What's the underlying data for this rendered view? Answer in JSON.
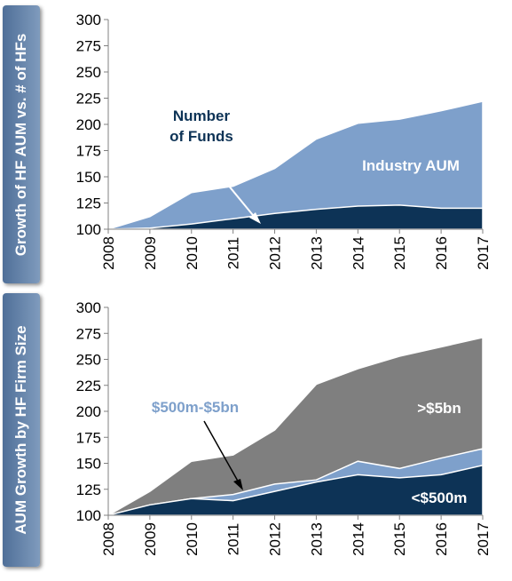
{
  "chart_data": [
    {
      "type": "area",
      "ylabel": "Growth of HF AUM vs. # of HFs",
      "x": [
        "2008",
        "2009",
        "2010",
        "2011",
        "2012",
        "2013",
        "2014",
        "2015",
        "2016",
        "2017"
      ],
      "ylim": [
        100,
        300
      ],
      "yticks": [
        "100",
        "125",
        "150",
        "175",
        "200",
        "225",
        "250",
        "275",
        "300"
      ],
      "series": [
        {
          "name": "Industry AUM",
          "values": [
            100,
            112,
            135,
            141,
            158,
            186,
            201,
            205,
            213,
            222
          ],
          "color": "#7ea0cb"
        },
        {
          "name": "Number of Funds",
          "values": [
            100,
            101,
            105,
            110,
            115,
            119,
            122,
            123,
            120,
            120
          ],
          "color": "#0d3356"
        }
      ],
      "annotations": [
        {
          "text": "Industry AUM",
          "series": "Industry AUM"
        },
        {
          "text": "Number\nof Funds",
          "series": "Number of Funds"
        }
      ],
      "grid": false
    },
    {
      "type": "area",
      "ylabel": "AUM Growth by HF Firm Size",
      "x": [
        "2008",
        "2009",
        "2010",
        "2011",
        "2012",
        "2013",
        "2014",
        "2015",
        "2016",
        "2017"
      ],
      "ylim": [
        100,
        300
      ],
      "yticks": [
        "100",
        "125",
        "150",
        "175",
        "200",
        "225",
        "250",
        "275",
        "300"
      ],
      "series": [
        {
          "name": ">$5bn",
          "values": [
            100,
            123,
            152,
            158,
            182,
            226,
            241,
            253,
            262,
            271
          ],
          "color": "#7f7f7f"
        },
        {
          "name": "$500m-$5bn",
          "values": [
            100,
            110,
            116,
            120,
            130,
            134,
            152,
            145,
            155,
            164
          ],
          "color": "#7ea0cb"
        },
        {
          "name": "<$500m",
          "values": [
            100,
            110,
            116,
            114,
            123,
            132,
            139,
            136,
            139,
            148
          ],
          "color": "#0d3356"
        }
      ],
      "annotations": [
        {
          "text": ">$5bn",
          "series": ">$5bn"
        },
        {
          "text": "$500m-$5bn",
          "series": "$500m-$5bn"
        },
        {
          "text": "<$500m",
          "series": "<$500m"
        }
      ],
      "grid": false
    }
  ]
}
